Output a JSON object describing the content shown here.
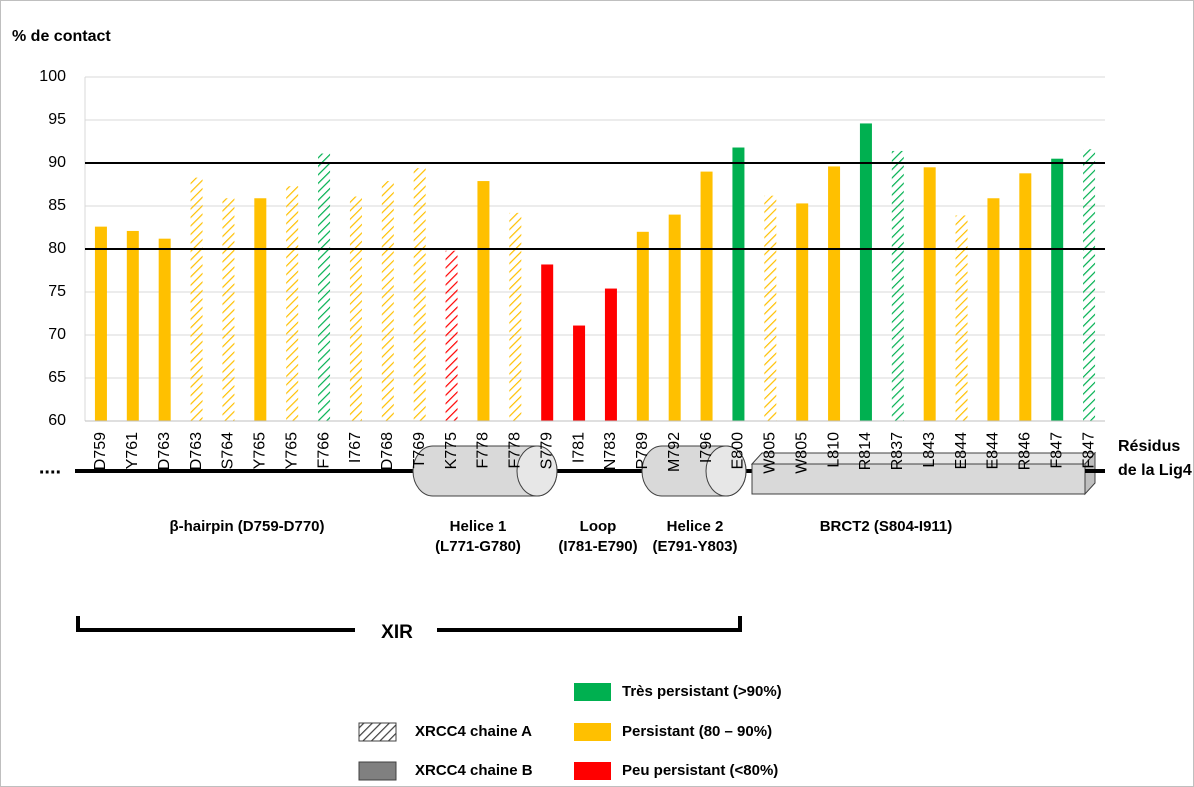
{
  "chart_data": {
    "type": "bar",
    "y_label": "% de contact",
    "x_label": [
      "Résidus",
      "de la Lig4"
    ],
    "categories": [
      "D759",
      "Y761",
      "D763",
      "D763",
      "S764",
      "Y765",
      "Y765",
      "F766",
      "I767",
      "D768",
      "T769",
      "K775",
      "F778",
      "F778",
      "S779",
      "I781",
      "N783",
      "P789",
      "M792",
      "I796",
      "E800",
      "W805",
      "W805",
      "L810",
      "R814",
      "R837",
      "L843",
      "E844",
      "E844",
      "R846",
      "F847",
      "F847"
    ],
    "values": [
      82.6,
      82.1,
      81.2,
      88.3,
      85.9,
      85.9,
      87.3,
      91.1,
      86.1,
      87.9,
      89.4,
      79.8,
      87.9,
      84.2,
      78.2,
      71.1,
      75.4,
      82.0,
      84.0,
      89.0,
      91.8,
      86.2,
      85.3,
      89.6,
      94.6,
      91.4,
      89.5,
      83.9,
      85.9,
      88.8,
      90.5,
      91.6
    ],
    "colors": [
      "#ffc000",
      "#ffc000",
      "#ffc000",
      "#ffc000",
      "#ffc000",
      "#ffc000",
      "#ffc000",
      "#00b050",
      "#ffc000",
      "#ffc000",
      "#ffc000",
      "#ff0000",
      "#ffc000",
      "#ffc000",
      "#ff0000",
      "#ff0000",
      "#ff0000",
      "#ffc000",
      "#ffc000",
      "#ffc000",
      "#00b050",
      "#ffc000",
      "#ffc000",
      "#ffc000",
      "#00b050",
      "#00b050",
      "#ffc000",
      "#ffc000",
      "#ffc000",
      "#ffc000",
      "#00b050",
      "#00b050"
    ],
    "hatched": [
      false,
      false,
      false,
      true,
      true,
      false,
      true,
      true,
      true,
      true,
      true,
      true,
      false,
      true,
      false,
      false,
      false,
      false,
      false,
      false,
      false,
      true,
      false,
      false,
      false,
      true,
      false,
      true,
      false,
      false,
      false,
      true
    ],
    "ylim": [
      60,
      100
    ],
    "yticks": [
      60,
      65,
      70,
      75,
      80,
      85,
      90,
      95,
      100
    ],
    "grid": true,
    "reference_lines": [
      80,
      90
    ],
    "legend": {
      "colors": [
        {
          "label": "Très persistant (>90%)",
          "color": "#00b050"
        },
        {
          "label": "Persistant (80 – 90%)",
          "color": "#ffc000"
        },
        {
          "label": "Peu persistant (<80%)",
          "color": "#ff0000"
        }
      ],
      "patterns": [
        {
          "label": "XRCC4 chaine A",
          "hatched": true
        },
        {
          "label": "XRCC4 chaine B",
          "hatched": false
        }
      ]
    },
    "ellipsis": "....",
    "domains": [
      {
        "lines": [
          "β-hairpin (D759-D770)"
        ]
      },
      {
        "lines": [
          "Helice 1",
          "(L771-G780)"
        ]
      },
      {
        "lines": [
          "Loop",
          "(I781-E790)"
        ]
      },
      {
        "lines": [
          "Helice 2",
          "(E791-Y803)"
        ]
      },
      {
        "lines": [
          "BRCT2 (S804-I911)"
        ]
      }
    ],
    "region": "XIR"
  }
}
